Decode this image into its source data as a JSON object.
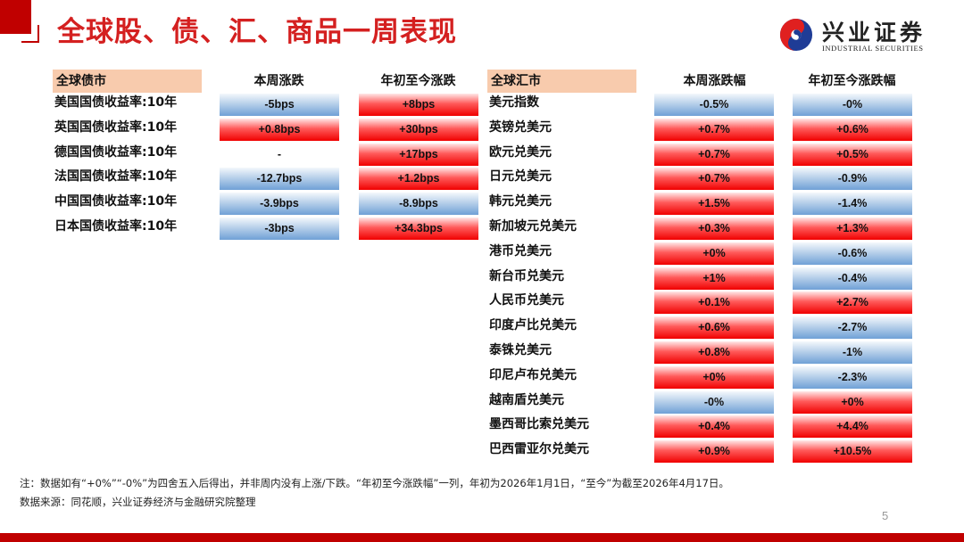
{
  "slide": {
    "title": "全球股、债、汇、商品一周表现",
    "page_number": "5",
    "accent_color": "#c00000",
    "title_color": "#d42020"
  },
  "logo": {
    "name_cn": "兴业证券",
    "name_en": "INDUSTRIAL SECURITIES"
  },
  "bonds": {
    "section_label": "全球债市",
    "col_week": "本周涨跌",
    "col_ytd": "年初至今涨跌",
    "rows": [
      {
        "name": "美国国债收益率:10年",
        "week": "-5bps",
        "week_dir": "down",
        "ytd": "+8bps",
        "ytd_dir": "up"
      },
      {
        "name": "英国国债收益率:10年",
        "week": "+0.8bps",
        "week_dir": "up",
        "ytd": "+30bps",
        "ytd_dir": "up"
      },
      {
        "name": "德国国债收益率:10年",
        "week": "-",
        "week_dir": "flat",
        "ytd": "+17bps",
        "ytd_dir": "up"
      },
      {
        "name": "法国国债收益率:10年",
        "week": "-12.7bps",
        "week_dir": "down",
        "ytd": "+1.2bps",
        "ytd_dir": "up"
      },
      {
        "name": "中国国债收益率:10年",
        "week": "-3.9bps",
        "week_dir": "down",
        "ytd": "-8.9bps",
        "ytd_dir": "down"
      },
      {
        "name": "日本国债收益率:10年",
        "week": "-3bps",
        "week_dir": "down",
        "ytd": "+34.3bps",
        "ytd_dir": "up"
      }
    ]
  },
  "fx": {
    "section_label": "全球汇市",
    "col_week": "本周涨跌幅",
    "col_ytd": "年初至今涨跌幅",
    "rows": [
      {
        "name": "美元指数",
        "week": "-0.5%",
        "week_dir": "down",
        "ytd": "-0%",
        "ytd_dir": "down"
      },
      {
        "name": "英镑兑美元",
        "week": "+0.7%",
        "week_dir": "up",
        "ytd": "+0.6%",
        "ytd_dir": "up"
      },
      {
        "name": "欧元兑美元",
        "week": "+0.7%",
        "week_dir": "up",
        "ytd": "+0.5%",
        "ytd_dir": "up"
      },
      {
        "name": "日元兑美元",
        "week": "+0.7%",
        "week_dir": "up",
        "ytd": "-0.9%",
        "ytd_dir": "down"
      },
      {
        "name": "韩元兑美元",
        "week": "+1.5%",
        "week_dir": "up",
        "ytd": "-1.4%",
        "ytd_dir": "down"
      },
      {
        "name": "新加坡元兑美元",
        "week": "+0.3%",
        "week_dir": "up",
        "ytd": "+1.3%",
        "ytd_dir": "up"
      },
      {
        "name": "港币兑美元",
        "week": "+0%",
        "week_dir": "up",
        "ytd": "-0.6%",
        "ytd_dir": "down"
      },
      {
        "name": "新台币兑美元",
        "week": "+1%",
        "week_dir": "up",
        "ytd": "-0.4%",
        "ytd_dir": "down"
      },
      {
        "name": "人民币兑美元",
        "week": "+0.1%",
        "week_dir": "up",
        "ytd": "+2.7%",
        "ytd_dir": "up"
      },
      {
        "name": "印度卢比兑美元",
        "week": "+0.6%",
        "week_dir": "up",
        "ytd": "-2.7%",
        "ytd_dir": "down"
      },
      {
        "name": "泰铢兑美元",
        "week": "+0.8%",
        "week_dir": "up",
        "ytd": "-1%",
        "ytd_dir": "down"
      },
      {
        "name": "印尼卢布兑美元",
        "week": "+0%",
        "week_dir": "up",
        "ytd": "-2.3%",
        "ytd_dir": "down"
      },
      {
        "name": "越南盾兑美元",
        "week": "-0%",
        "week_dir": "down",
        "ytd": "+0%",
        "ytd_dir": "up"
      },
      {
        "name": "墨西哥比索兑美元",
        "week": "+0.4%",
        "week_dir": "up",
        "ytd": "+4.4%",
        "ytd_dir": "up"
      },
      {
        "name": "巴西雷亚尔兑美元",
        "week": "+0.9%",
        "week_dir": "up",
        "ytd": "+10.5%",
        "ytd_dir": "up"
      }
    ]
  },
  "notes": {
    "note": "注：数据如有“+0%”“-0%”为四舍五入后得出，并非周内没有上涨/下跌。“年初至今涨跌幅”一列，年初为2026年1月1日，“至今”为截至2026年4月17日。",
    "source": "数据来源：同花顺，兴业证券经济与金融研究院整理"
  },
  "colors": {
    "up": "#f00000",
    "down": "#6fa0d6",
    "header_fill": "#f8cbad"
  }
}
